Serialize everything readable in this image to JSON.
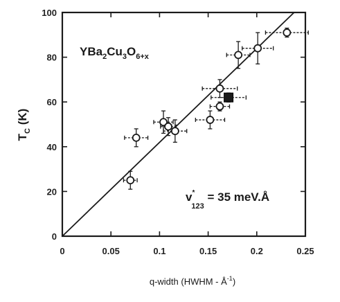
{
  "chart_data": {
    "type": "scatter",
    "xlabel": "q-width (HWHM - Å",
    "xlabel_sup": "-1",
    "xlabel_close": ")",
    "ylabel_main": "T",
    "ylabel_sub": "C",
    "ylabel_unit": " (K)",
    "xlim": [
      0,
      0.25
    ],
    "ylim": [
      0,
      100
    ],
    "x_ticks": [
      0,
      0.05,
      0.1,
      0.15,
      0.2,
      0.25
    ],
    "x_tick_labels": [
      "0",
      "0.05",
      "0.1",
      "0.15",
      "0.2",
      "0.25"
    ],
    "y_ticks": [
      0,
      20,
      40,
      60,
      80,
      100
    ],
    "y_tick_labels": [
      "0",
      "20",
      "40",
      "60",
      "80",
      "100"
    ],
    "compound": {
      "parts": [
        {
          "text": "YBa",
          "sub": false
        },
        {
          "text": "2",
          "sub": true
        },
        {
          "text": "Cu",
          "sub": false
        },
        {
          "text": "3",
          "sub": true
        },
        {
          "text": "O",
          "sub": false
        },
        {
          "text": "6+x",
          "sub": true
        }
      ]
    },
    "velocity": {
      "v": "v",
      "sup": "*",
      "sub": "123",
      "value": " = 35 meV.Å"
    },
    "fit_line": {
      "x": [
        0,
        0.2384
      ],
      "y": [
        0,
        100
      ]
    },
    "series": [
      {
        "marker": "open-circle",
        "points": [
          {
            "x": 0.07,
            "y": 25,
            "xerr": 0.007,
            "yerr": 4
          },
          {
            "x": 0.076,
            "y": 44,
            "xerr": 0.012,
            "yerr": 4
          },
          {
            "x": 0.104,
            "y": 51,
            "xerr": 0.01,
            "yerr": 5
          },
          {
            "x": 0.109,
            "y": 49,
            "xerr": 0.008,
            "yerr": 4
          },
          {
            "x": 0.116,
            "y": 47,
            "xerr": 0.012,
            "yerr": 5
          },
          {
            "x": 0.152,
            "y": 52,
            "xerr": 0.015,
            "yerr": 4
          },
          {
            "x": 0.162,
            "y": 66,
            "xerr": 0.018,
            "yerr": 4
          },
          {
            "x": 0.162,
            "y": 58,
            "xerr": 0.01,
            "yerr": 2
          },
          {
            "x": 0.181,
            "y": 81,
            "xerr": 0.012,
            "yerr": 6
          },
          {
            "x": 0.201,
            "y": 84,
            "xerr": 0.016,
            "yerr": 7
          },
          {
            "x": 0.231,
            "y": 91,
            "xerr": 0.022,
            "yerr": 2
          }
        ]
      },
      {
        "marker": "filled-square",
        "points": [
          {
            "x": 0.171,
            "y": 62,
            "xerr": 0.018,
            "yerr": 2
          }
        ]
      }
    ],
    "grid": false,
    "legend": "none"
  }
}
